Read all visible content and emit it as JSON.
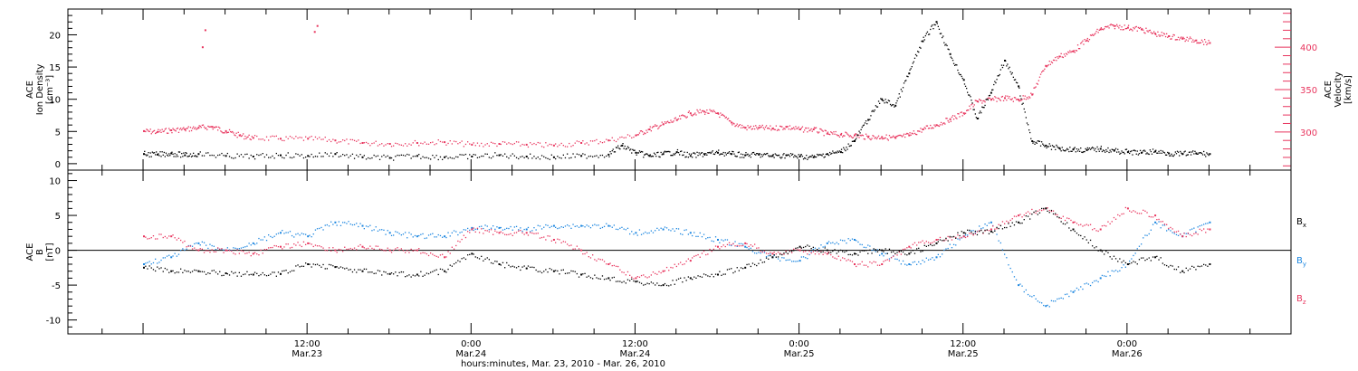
{
  "chart_data": [
    {
      "type": "scatter",
      "title": "",
      "ylabel_left": [
        "ACE",
        "Ion Density",
        "[cm⁻³]"
      ],
      "ylabel_right": [
        "ACE",
        "Velocity",
        "[km/s]"
      ],
      "ylim_left": [
        -1,
        24
      ],
      "ylim_right": [
        255,
        445
      ],
      "yticks_left": [
        "0",
        "5",
        "10",
        "15",
        "20"
      ],
      "yticks_right": [
        "300",
        "350",
        "400"
      ],
      "colors": {
        "density": "#000000",
        "velocity": "#e8355e"
      },
      "series": [
        {
          "name": "",
          "axis": "left",
          "color": "#000000",
          "x": [
            0,
            1,
            2,
            3,
            4,
            6,
            8,
            10,
            12,
            14,
            16,
            18,
            20,
            22,
            24,
            26,
            28,
            30,
            32,
            34,
            35,
            36,
            37,
            38,
            39,
            40,
            41,
            42,
            43,
            44,
            45,
            46,
            47,
            48,
            49,
            50,
            51,
            52,
            53,
            54,
            55,
            56,
            57,
            58,
            59,
            60,
            61,
            62,
            63,
            64,
            65,
            66,
            67,
            68,
            69,
            70,
            71,
            72,
            73,
            74,
            75,
            76,
            77,
            78
          ],
          "y": [
            1.5,
            1.4,
            1.6,
            1.3,
            1.5,
            1.2,
            1.1,
            1.3,
            1.2,
            1.5,
            1.0,
            0.9,
            1.2,
            1.0,
            1.1,
            1.3,
            1.1,
            1.0,
            1.2,
            1.4,
            2.8,
            1.7,
            1.2,
            1.5,
            1.8,
            1.2,
            1.5,
            1.7,
            1.5,
            1.3,
            1.4,
            1.2,
            1.3,
            1.1,
            1.0,
            1.5,
            1.8,
            3.5,
            6.8,
            10,
            9,
            14,
            19,
            22,
            17,
            13,
            7,
            11,
            16,
            12,
            3.5,
            2.8,
            2.4,
            2.2,
            2.1,
            2.3,
            2.0,
            1.8,
            1.7,
            1.9,
            1.6,
            1.5,
            1.6,
            1.5
          ]
        },
        {
          "name": "",
          "axis": "right",
          "color": "#e8355e",
          "x": [
            0,
            1,
            2,
            3,
            4,
            5,
            6,
            7,
            8,
            10,
            12,
            14,
            16,
            18,
            20,
            22,
            24,
            26,
            28,
            30,
            32,
            34,
            36,
            37,
            38,
            39,
            40,
            41,
            42,
            43,
            44,
            45,
            46,
            47,
            48,
            49,
            50,
            51,
            52,
            53,
            54,
            55,
            56,
            57,
            58,
            59,
            60,
            61,
            62,
            63,
            64,
            65,
            66,
            67,
            68,
            69,
            70,
            71,
            72,
            73,
            74,
            75,
            76,
            77,
            78
          ],
          "y": [
            301,
            300,
            302,
            303,
            305,
            306,
            301,
            296,
            293,
            292,
            292,
            290,
            287,
            286,
            287,
            288,
            285,
            286,
            285,
            284,
            287,
            290,
            296,
            303,
            309,
            314,
            322,
            324,
            322,
            311,
            305,
            305,
            304,
            306,
            303,
            303,
            298,
            297,
            296,
            294,
            294,
            293,
            296,
            303,
            308,
            315,
            322,
            336,
            338,
            340,
            338,
            344,
            378,
            389,
            395,
            408,
            421,
            425,
            423,
            421,
            416,
            413,
            410,
            408,
            405
          ]
        },
        {
          "name": "",
          "axis": "right",
          "color": "#e8355e",
          "x": [
            4.3,
            4.5,
            12.5,
            12.7
          ],
          "y": [
            400,
            420,
            418,
            425
          ]
        }
      ]
    },
    {
      "type": "scatter",
      "title": "",
      "ylabel_left": [
        "ACE",
        "B",
        "[nT]"
      ],
      "ylim": [
        -12,
        11.5
      ],
      "yticks": [
        "10",
        "5",
        "0",
        "-5",
        "-10"
      ],
      "series": [
        {
          "name": "Bx",
          "color": "#000000",
          "x": [
            0,
            2,
            4,
            6,
            8,
            10,
            12,
            14,
            16,
            18,
            20,
            22,
            24,
            26,
            28,
            30,
            32,
            34,
            36,
            38,
            40,
            42,
            44,
            46,
            48,
            50,
            52,
            54,
            56,
            58,
            60,
            62,
            64,
            66,
            68,
            70,
            72,
            74,
            76,
            78
          ],
          "y": [
            -2.5,
            -3,
            -3,
            -3.3,
            -3.5,
            -3.4,
            -2,
            -2.4,
            -3,
            -3.4,
            -3.5,
            -3,
            -0.5,
            -2,
            -2.6,
            -3,
            -3.5,
            -4,
            -4.5,
            -5,
            -4,
            -3.5,
            -2.5,
            -1,
            0.5,
            0,
            -0.5,
            0,
            -0.5,
            1,
            2.5,
            2.7,
            4,
            6,
            3,
            0,
            -2,
            -1,
            -3,
            -2
          ]
        },
        {
          "name": "By",
          "color": "#1b86e0",
          "x": [
            0,
            2,
            4,
            6,
            8,
            10,
            12,
            14,
            16,
            18,
            20,
            22,
            24,
            26,
            28,
            30,
            32,
            34,
            36,
            38,
            40,
            42,
            44,
            46,
            48,
            50,
            52,
            54,
            56,
            58,
            60,
            62,
            64,
            66,
            68,
            70,
            72,
            74,
            76,
            78
          ],
          "y": [
            -2,
            -1,
            1,
            0,
            1,
            2.5,
            2,
            4,
            3.5,
            2.5,
            2,
            2,
            3.2,
            3.2,
            3,
            3.5,
            3.5,
            3.5,
            2.5,
            3,
            2.5,
            1.5,
            0.5,
            -1,
            -1.5,
            1,
            1.5,
            -0.5,
            -2,
            -1,
            2,
            4,
            -5,
            -8,
            -6,
            -4,
            -2,
            4,
            2,
            4
          ]
        },
        {
          "name": "Bz",
          "color": "#e8355e",
          "x": [
            0,
            2,
            4,
            6,
            8,
            10,
            12,
            14,
            16,
            18,
            20,
            22,
            24,
            26,
            28,
            30,
            32,
            34,
            36,
            38,
            40,
            42,
            44,
            46,
            48,
            50,
            52,
            54,
            56,
            58,
            60,
            62,
            64,
            66,
            68,
            70,
            72,
            74,
            76,
            78
          ],
          "y": [
            2,
            2,
            0,
            0,
            -0.5,
            0.5,
            1,
            0,
            0.5,
            0,
            0,
            -1,
            3,
            2.5,
            2.5,
            1.5,
            0,
            -2,
            -4,
            -3,
            -1.5,
            0.5,
            1,
            -0.5,
            0,
            -0.5,
            -2,
            -2,
            0.5,
            1.5,
            2,
            3,
            5,
            6,
            4,
            3,
            6,
            5,
            2,
            3
          ]
        }
      ]
    }
  ],
  "axis": {
    "xlim": [
      -5.5,
      84
    ],
    "xlabel": "hours:minutes, Mar. 23, 2010 - Mar. 26, 2010",
    "xticks": [
      {
        "x": 12,
        "time": "12:00",
        "date": "Mar.23"
      },
      {
        "x": 24,
        "time": "0:00",
        "date": "Mar.24"
      },
      {
        "x": 36,
        "time": "12:00",
        "date": "Mar.24"
      },
      {
        "x": 48,
        "time": "0:00",
        "date": "Mar.25"
      },
      {
        "x": 60,
        "time": "12:00",
        "date": "Mar.25"
      },
      {
        "x": 72,
        "time": "0:00",
        "date": "Mar.26"
      }
    ]
  },
  "legend": {
    "items": [
      {
        "base": "B",
        "sub": "x",
        "color": "#000000"
      },
      {
        "base": "B",
        "sub": "y",
        "color": "#1b86e0"
      },
      {
        "base": "B",
        "sub": "z",
        "color": "#e8355e"
      }
    ]
  }
}
